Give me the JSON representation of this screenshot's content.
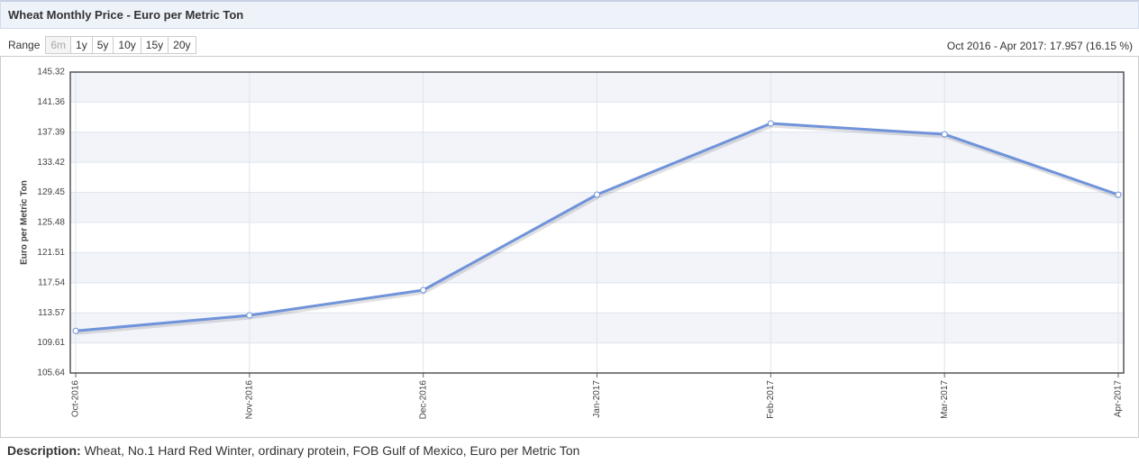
{
  "header": {
    "title": "Wheat Monthly Price - Euro per Metric Ton"
  },
  "controls": {
    "range_label": "Range",
    "range_buttons": [
      "6m",
      "1y",
      "5y",
      "10y",
      "15y",
      "20y"
    ],
    "summary": "Oct 2016 - Apr 2017: 17.957 (16.15 %)"
  },
  "chart_data": {
    "type": "line",
    "y_label": "Euro per Metric Ton",
    "categories": [
      "Oct-2016",
      "Nov-2016",
      "Dec-2016",
      "Jan-2017",
      "Feb-2017",
      "Mar-2017",
      "Apr-2017"
    ],
    "values": [
      111.19,
      113.24,
      116.57,
      129.16,
      138.55,
      137.12,
      129.15
    ],
    "color": "#7093da",
    "ylim": [
      105.64,
      145.32
    ],
    "yticks": [
      105.64,
      109.61,
      113.57,
      117.54,
      121.51,
      125.48,
      129.45,
      133.42,
      137.39,
      141.36,
      145.32
    ],
    "grid": true
  },
  "footer": {
    "label": "Description:",
    "text": "Wheat, No.1 Hard Red Winter, ordinary protein, FOB Gulf of Mexico, Euro per Metric Ton"
  }
}
